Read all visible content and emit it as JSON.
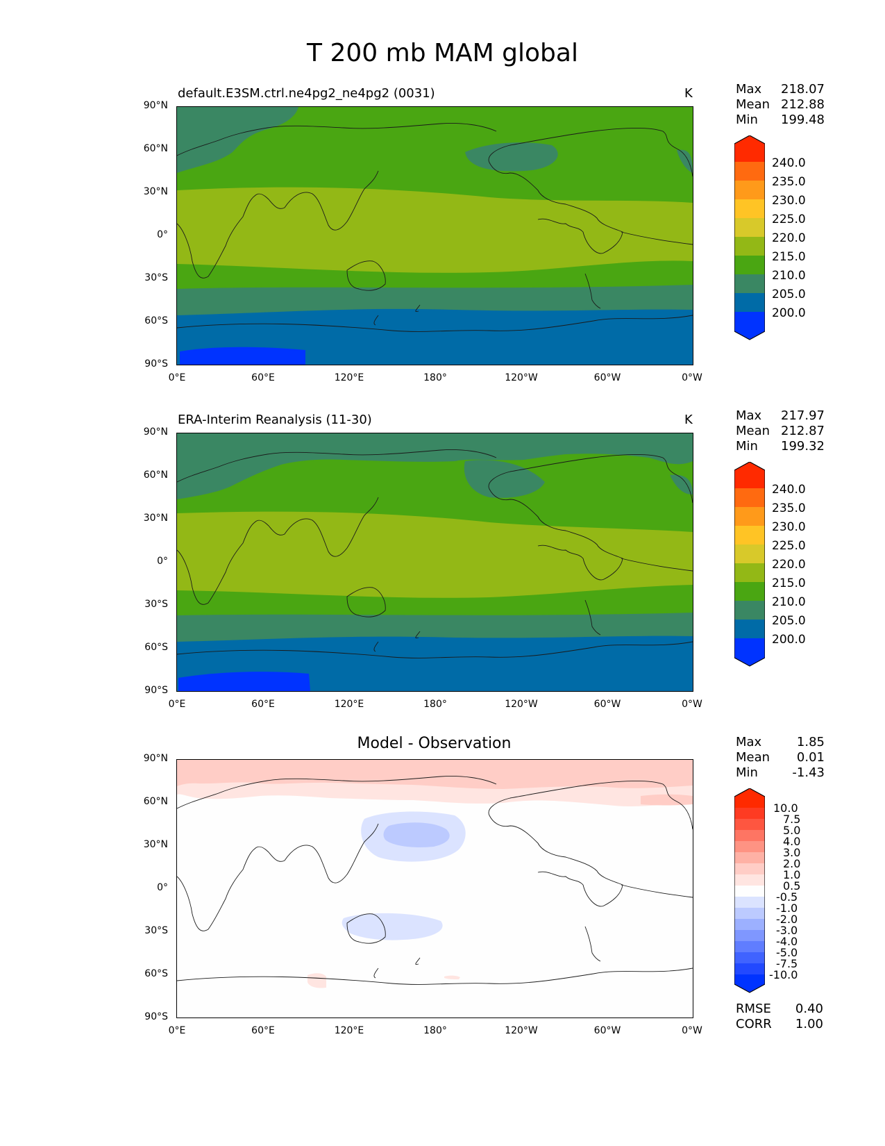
{
  "figure_title": "T 200 mb MAM global",
  "colors": {
    "dark_blue_lower": "#0033ff",
    "blue": "#006ba7",
    "teal": "#3a8763",
    "green": "#4aa612",
    "yellow_green": "#93b816",
    "diff_red_light": "#ffcdc6",
    "diff_red_pale": "#ffe5e1",
    "diff_blue_pale": "#dbe3ff",
    "diff_blue_light": "#bccaff"
  },
  "axes": {
    "lat_ticks": [
      "90°N",
      "60°N",
      "30°N",
      "0°",
      "30°S",
      "60°S",
      "90°S"
    ],
    "lon_ticks": [
      "0°E",
      "60°E",
      "120°E",
      "180°",
      "120°W",
      "60°W",
      "0°W"
    ]
  },
  "panels": [
    {
      "title": "default.E3SM.ctrl.ne4pg2_ne4pg2 (0031)",
      "units": "K",
      "stats": {
        "max_label": "Max",
        "max": "218.07",
        "mean_label": "Mean",
        "mean": "212.88",
        "min_label": "Min",
        "min": "199.48"
      },
      "colorbar_labels": [
        "240.0",
        "235.0",
        "230.0",
        "225.0",
        "220.0",
        "215.0",
        "210.0",
        "205.0",
        "200.0"
      ]
    },
    {
      "title": "ERA-Interim Reanalysis (11-30)",
      "units": "K",
      "stats": {
        "max_label": "Max",
        "max": "217.97",
        "mean_label": "Mean",
        "mean": "212.87",
        "min_label": "Min",
        "min": "199.32"
      },
      "colorbar_labels": [
        "240.0",
        "235.0",
        "230.0",
        "225.0",
        "220.0",
        "215.0",
        "210.0",
        "205.0",
        "200.0"
      ]
    },
    {
      "title": "Model - Observation",
      "units": "",
      "stats": {
        "max_label": "Max",
        "max": "1.85",
        "mean_label": "Mean",
        "mean": "0.01",
        "min_label": "Min",
        "min": "-1.43"
      },
      "colorbar_labels": [
        "10.0",
        "7.5",
        "5.0",
        "4.0",
        "3.0",
        "2.0",
        "1.0",
        "0.5",
        "-0.5",
        "-1.0",
        "-2.0",
        "-3.0",
        "-4.0",
        "-5.0",
        "-7.5",
        "-10.0"
      ],
      "rmse_label": "RMSE",
      "rmse": "0.40",
      "corr_label": "CORR",
      "corr": "1.00"
    }
  ],
  "map_data": {
    "type": "contourf",
    "variable": "T 200 mb",
    "season": "MAM",
    "region": "global",
    "lat_range": [
      -90,
      90
    ],
    "lon_range": [
      0,
      360
    ],
    "abs_levels": [
      200,
      205,
      210,
      215,
      220,
      225,
      230,
      235,
      240
    ],
    "diff_levels": [
      -10,
      -7.5,
      -5,
      -4,
      -3,
      -2,
      -1,
      -0.5,
      0.5,
      1,
      2,
      3,
      4,
      5,
      7.5,
      10
    ]
  }
}
